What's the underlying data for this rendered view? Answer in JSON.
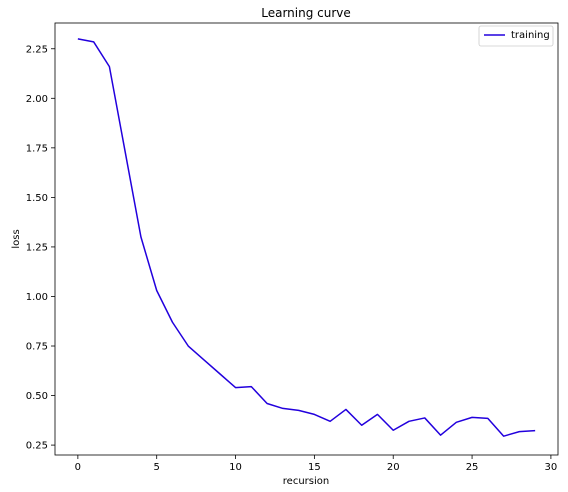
{
  "chart_data": {
    "type": "line",
    "title": "Learning curve",
    "xlabel": "recursion",
    "ylabel": "loss",
    "xlim": [
      -1.45,
      30.45
    ],
    "ylim": [
      0.2,
      2.38
    ],
    "xticks": [
      0,
      5,
      10,
      15,
      20,
      25,
      30
    ],
    "yticks": [
      0.25,
      0.5,
      0.75,
      1.0,
      1.25,
      1.5,
      1.75,
      2.0,
      2.25
    ],
    "ytick_labels": [
      "0.25",
      "0.50",
      "0.75",
      "1.00",
      "1.25",
      "1.50",
      "1.75",
      "2.00",
      "2.25"
    ],
    "grid": false,
    "legend": "top-right",
    "series": [
      {
        "name": "training",
        "color": "#2200dd",
        "x": [
          0,
          1,
          2,
          3,
          4,
          5,
          6,
          7,
          8,
          9,
          10,
          11,
          12,
          13,
          14,
          15,
          16,
          17,
          18,
          19,
          20,
          21,
          22,
          23,
          24,
          25,
          26,
          27,
          28,
          29
        ],
        "y": [
          2.3,
          2.285,
          2.16,
          1.73,
          1.3,
          1.03,
          0.87,
          0.75,
          0.68,
          0.61,
          0.54,
          0.545,
          0.46,
          0.435,
          0.425,
          0.405,
          0.37,
          0.43,
          0.35,
          0.405,
          0.325,
          0.37,
          0.387,
          0.3,
          0.365,
          0.39,
          0.385,
          0.295,
          0.318,
          0.323
        ]
      }
    ]
  }
}
